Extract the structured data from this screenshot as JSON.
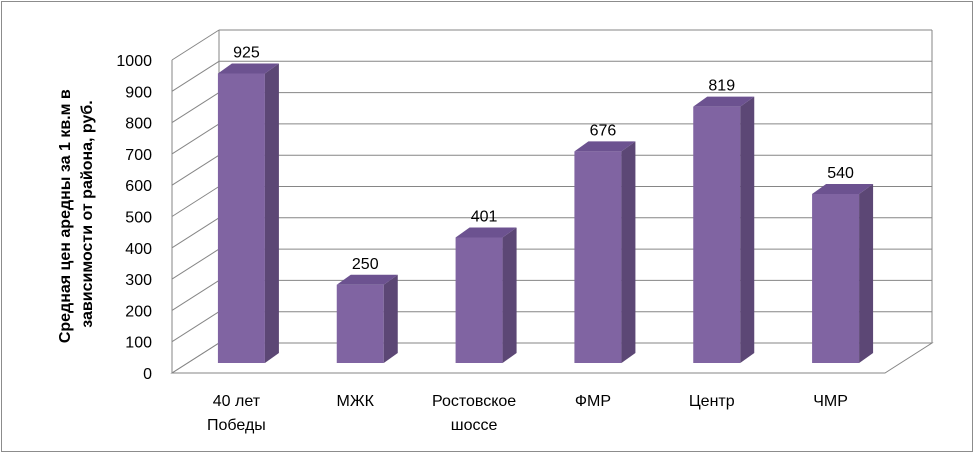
{
  "chart_data": {
    "type": "bar",
    "style": "3d-column",
    "categories": [
      [
        "40 лет",
        "Победы"
      ],
      [
        "МЖК"
      ],
      [
        "Ростовское",
        "шоссе"
      ],
      [
        "ФМР"
      ],
      [
        "Центр"
      ],
      [
        "ЧМР"
      ]
    ],
    "values": [
      925,
      250,
      401,
      676,
      819,
      540
    ],
    "data_labels": [
      "925",
      "250",
      "401",
      "676",
      "819",
      "540"
    ],
    "ylabel": [
      "Средная цен аредны за 1 кв.м в",
      "зависимости от района,  руб."
    ],
    "ylim": [
      0,
      1000
    ],
    "yticks": [
      "0",
      "100",
      "200",
      "300",
      "400",
      "500",
      "600",
      "700",
      "800",
      "900",
      "1000"
    ],
    "grid": true,
    "legend": "none",
    "colors": {
      "bar_front": "#8064A2",
      "bar_side": "#5C4775",
      "bar_top": "#6C5290",
      "grid": "#868686",
      "wall": "#ffffff",
      "floor": "#ffffff"
    }
  }
}
